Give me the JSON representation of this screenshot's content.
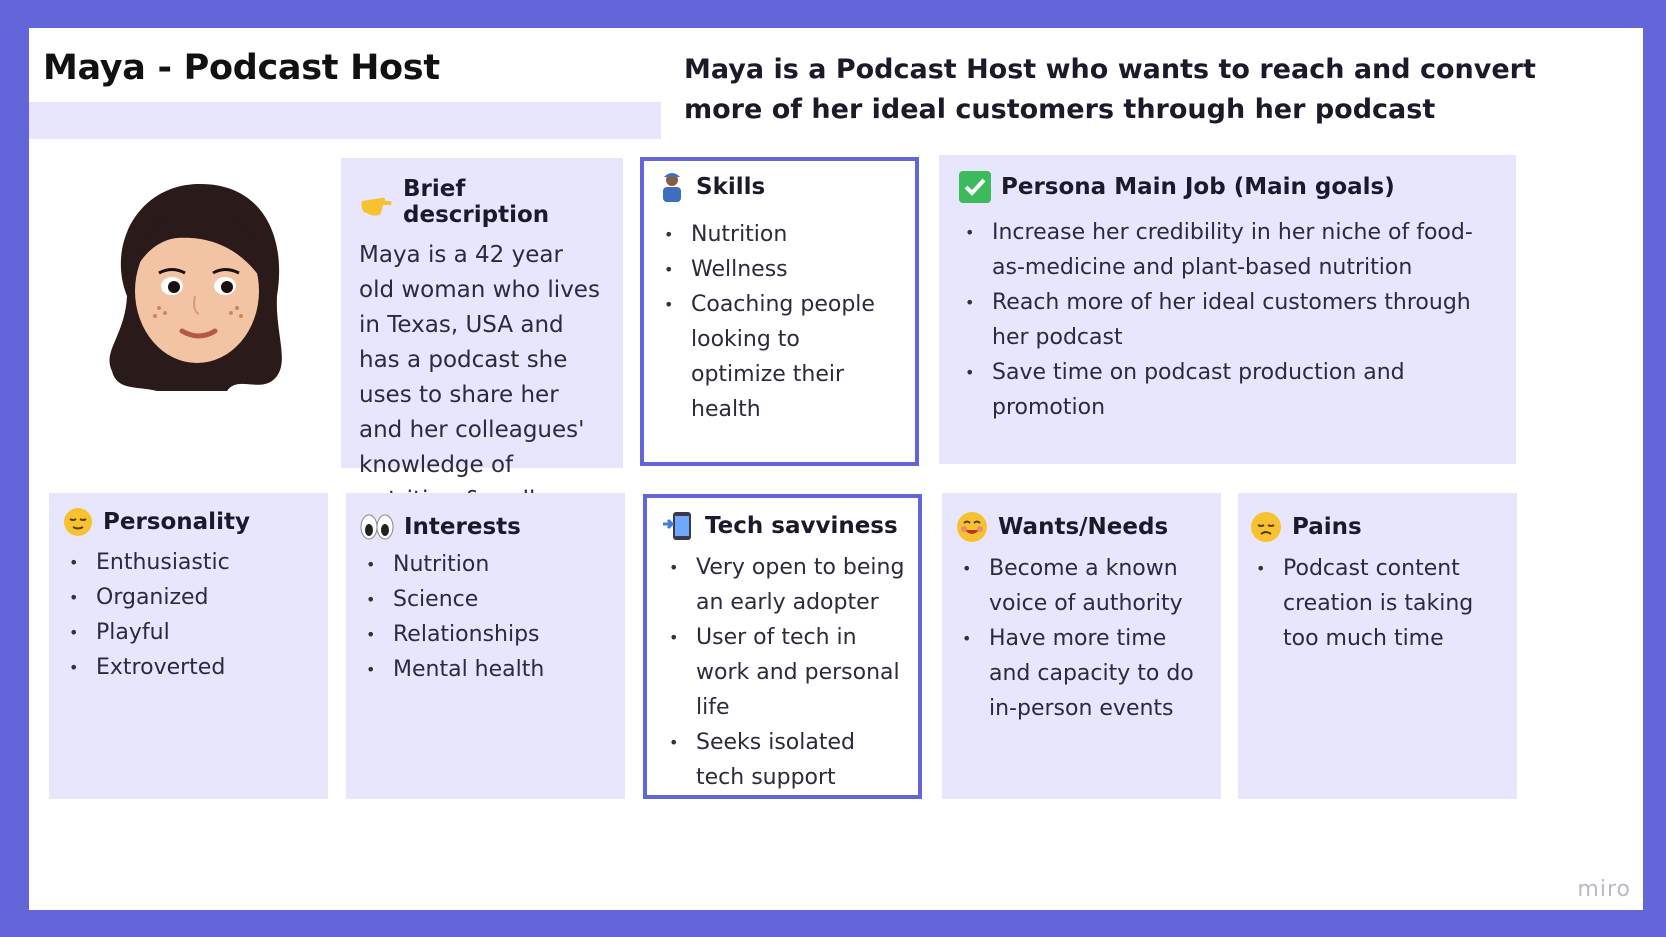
{
  "header": {
    "title": "Maya - Podcast Host",
    "headline": "Maya is a Podcast Host who wants to reach and convert more of her ideal customers through her podcast"
  },
  "avatar": {
    "icon": "memoji-avatar-icon"
  },
  "brief": {
    "title": "Brief description",
    "icon": "pointing-hand-icon",
    "text": "Maya is a 42 year old woman who lives in Texas, USA and has a podcast she uses to share her and her colleagues' knowledge of nutrition & wellness"
  },
  "skills": {
    "title": "Skills",
    "icon": "farmer-woman-icon",
    "items": [
      "Nutrition",
      "Wellness",
      "Coaching people looking to optimize their health"
    ]
  },
  "goals": {
    "title": "Persona Main Job (Main goals)",
    "icon": "check-mark-icon",
    "items": [
      "Increase her credibility in her niche of food-as-medicine and plant-based nutrition",
      "Reach more of her ideal customers through her podcast",
      "Save time on podcast production and promotion"
    ]
  },
  "personality": {
    "title": "Personality",
    "icon": "relieved-face-icon",
    "items": [
      "Enthusiastic",
      "Organized",
      "Playful",
      "Extroverted"
    ]
  },
  "interests": {
    "title": "Interests",
    "icon": "eyes-icon",
    "items": [
      "Nutrition",
      "Science",
      "Relationships",
      "Mental health"
    ]
  },
  "tech": {
    "title": "Tech savviness",
    "icon": "mobile-arrow-icon",
    "items": [
      "Very open to being an early adopter",
      "User of tech in work and personal life",
      "Seeks isolated tech support"
    ]
  },
  "wants": {
    "title": "Wants/Needs",
    "icon": "smiling-face-icon",
    "items": [
      "Become a known voice of authority",
      "Have more time and capacity to do in-person events"
    ]
  },
  "pains": {
    "title": "Pains",
    "icon": "disappointed-face-icon",
    "items": [
      "Podcast content creation is taking too much time"
    ]
  },
  "footer": {
    "brand": "miro"
  },
  "colors": {
    "frame": "#6366d9",
    "card": "#e8e6fd",
    "outline": "#6366d9",
    "emoji": "#f6c22f"
  }
}
